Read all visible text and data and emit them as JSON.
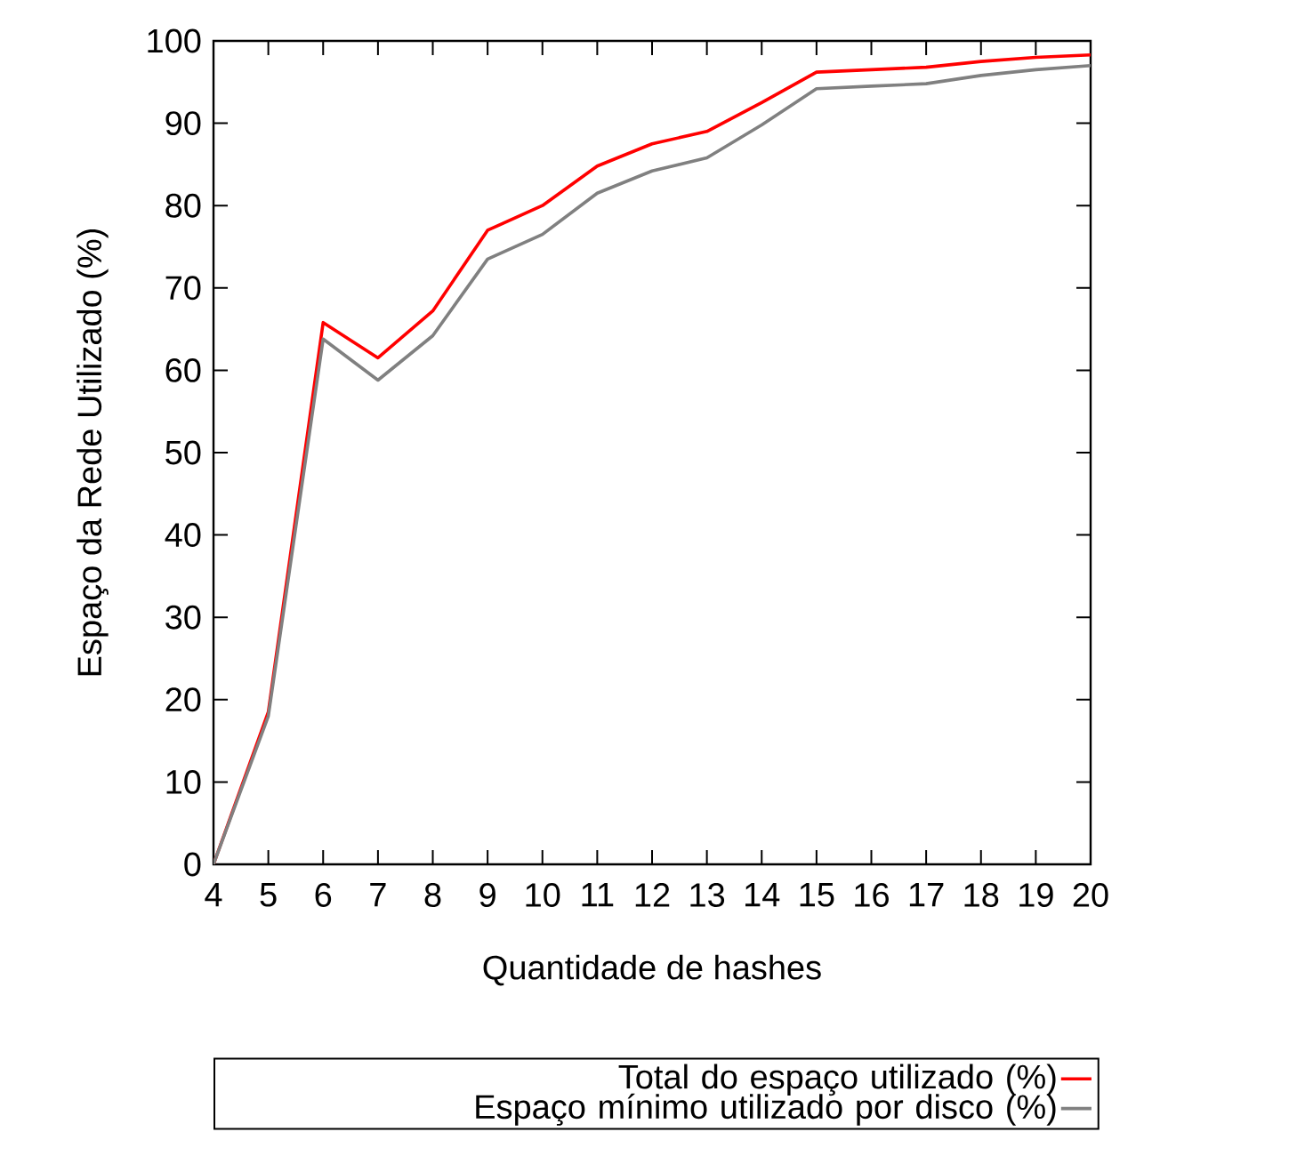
{
  "chart_data": {
    "type": "line",
    "xlabel": "Quantidade de hashes",
    "ylabel": "Espaço da Rede Utilizado (%)",
    "x": [
      4,
      5,
      6,
      7,
      8,
      9,
      10,
      11,
      12,
      13,
      14,
      15,
      16,
      17,
      18,
      19,
      20
    ],
    "series": [
      {
        "name": "Total do espaço utilizado (%)",
        "color": "#ff0000",
        "values": [
          0,
          18.5,
          65.8,
          61.5,
          67.2,
          77,
          80,
          84.8,
          87.5,
          89,
          92.5,
          96.2,
          96.5,
          96.8,
          97.5,
          98,
          98.3
        ]
      },
      {
        "name": "Espaço mínimo utilizado por disco (%)",
        "color": "#808080",
        "values": [
          0,
          18,
          63.8,
          58.8,
          64.2,
          73.5,
          76.5,
          81.5,
          84.2,
          85.8,
          89.8,
          94.2,
          94.5,
          94.8,
          95.8,
          96.5,
          97
        ]
      }
    ],
    "xlim": [
      4,
      20
    ],
    "ylim": [
      0,
      100
    ],
    "xticks": [
      4,
      5,
      6,
      7,
      8,
      9,
      10,
      11,
      12,
      13,
      14,
      15,
      16,
      17,
      18,
      19,
      20
    ],
    "yticks": [
      0,
      10,
      20,
      30,
      40,
      50,
      60,
      70,
      80,
      90,
      100
    ],
    "legend": "bottom",
    "grid": false,
    "marker": "none",
    "line_style": "solid"
  }
}
